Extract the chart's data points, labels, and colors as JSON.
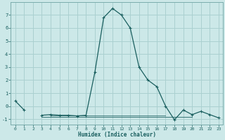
{
  "xlabel": "Humidex (Indice chaleur)",
  "x_values": [
    0,
    1,
    2,
    3,
    4,
    5,
    6,
    7,
    8,
    9,
    10,
    11,
    12,
    13,
    14,
    15,
    16,
    17,
    18,
    19,
    20,
    21,
    22,
    23
  ],
  "y_main": [
    0.4,
    -0.3,
    null,
    -0.7,
    -0.65,
    -0.7,
    -0.7,
    -0.75,
    -0.7,
    2.6,
    6.8,
    7.5,
    7.0,
    6.0,
    3.0,
    2.0,
    1.5,
    0.0,
    -1.05,
    -0.3,
    -0.65,
    -0.4,
    -0.65,
    -0.9
  ],
  "y_flat1": [
    -0.85,
    -0.85,
    -0.85,
    -0.85,
    -0.85,
    -0.85,
    -0.85,
    -0.85,
    -0.85,
    -0.85,
    -0.85,
    -0.85,
    -0.85,
    -0.85,
    -0.85,
    -0.85,
    -0.85,
    -0.85
  ],
  "y_flat2": [
    -0.7,
    -0.7,
    -0.7,
    -0.7,
    -0.7,
    -0.7,
    -0.7,
    -0.7,
    -0.7,
    -0.7,
    -0.7,
    -0.7,
    -0.7,
    -0.7
  ],
  "x_flat1": [
    3,
    4,
    5,
    6,
    7,
    8,
    9,
    10,
    11,
    12,
    13,
    14,
    15,
    16,
    17,
    18,
    19,
    20
  ],
  "x_flat2": [
    4,
    5,
    6,
    7,
    8,
    9,
    10,
    11,
    12,
    13,
    14,
    15,
    16,
    17
  ],
  "background_color": "#cce8e8",
  "grid_color": "#aad0d0",
  "line_color": "#1a5f5f",
  "ylim": [
    -1.4,
    8.0
  ],
  "xlim": [
    -0.5,
    23.5
  ],
  "yticks": [
    -1,
    0,
    1,
    2,
    3,
    4,
    5,
    6,
    7
  ],
  "xticks": [
    0,
    1,
    2,
    3,
    4,
    5,
    6,
    7,
    8,
    9,
    10,
    11,
    12,
    13,
    14,
    15,
    16,
    17,
    18,
    19,
    20,
    21,
    22,
    23
  ]
}
